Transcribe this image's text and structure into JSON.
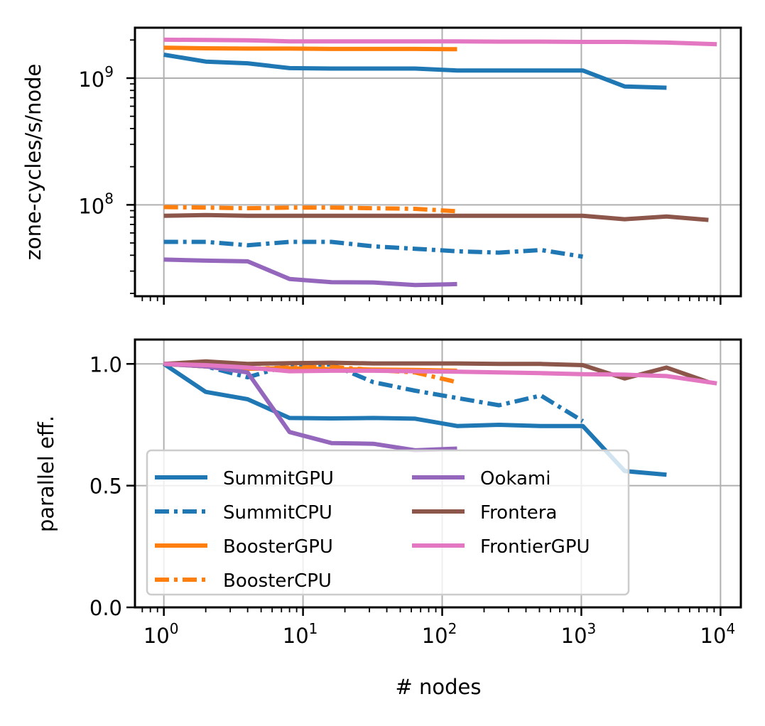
{
  "chart_data": [
    {
      "type": "line",
      "panel": "top",
      "title": "",
      "xlabel": "",
      "ylabel": "zone-cycles/s/node",
      "xscale": "log",
      "yscale": "log",
      "xlim": [
        0.62,
        14000
      ],
      "ylim": [
        19000000,
        2500000000
      ],
      "grid": true,
      "xticks": [
        1,
        10,
        100,
        1000,
        10000
      ],
      "xtick_labels": [
        "",
        "",
        "",
        "",
        ""
      ],
      "yticks": [
        100000000,
        1000000000
      ],
      "ytick_labels": [
        {
          "base": "10",
          "exp": "8"
        },
        {
          "base": "10",
          "exp": "9"
        }
      ],
      "series": [
        {
          "name": "SummitGPU",
          "color": "#1f77b4",
          "style": "solid",
          "x": [
            1,
            2,
            4,
            8,
            16,
            32,
            64,
            128,
            256,
            512,
            1024,
            2048,
            4096
          ],
          "y": [
            1530000000,
            1350000000,
            1310000000,
            1200000000,
            1190000000,
            1190000000,
            1190000000,
            1150000000,
            1150000000,
            1150000000,
            1150000000,
            860000000,
            840000000
          ]
        },
        {
          "name": "SummitCPU",
          "color": "#1f77b4",
          "style": "dashdot",
          "x": [
            1,
            2,
            4,
            8,
            16,
            32,
            64,
            128,
            256,
            512,
            1024
          ],
          "y": [
            51000000,
            51000000,
            48000000,
            51000000,
            51000000,
            47000000,
            45000000,
            43000000,
            42000000,
            44000000,
            39000000
          ]
        },
        {
          "name": "BoosterGPU",
          "color": "#ff7f0e",
          "style": "solid",
          "x": [
            1,
            2,
            4,
            8,
            16,
            32,
            64,
            128
          ],
          "y": [
            1740000000,
            1720000000,
            1710000000,
            1710000000,
            1700000000,
            1700000000,
            1700000000,
            1690000000
          ]
        },
        {
          "name": "BoosterCPU",
          "color": "#ff7f0e",
          "style": "dashdot",
          "x": [
            1,
            2,
            4,
            8,
            16,
            32,
            64,
            128
          ],
          "y": [
            96000000,
            95000000,
            94000000,
            95000000,
            95000000,
            94000000,
            93000000,
            89000000
          ]
        },
        {
          "name": "Ookami",
          "color": "#9467bd",
          "style": "solid",
          "x": [
            1,
            2,
            4,
            8,
            16,
            32,
            64,
            128
          ],
          "y": [
            37000000,
            36300000,
            35800000,
            26000000,
            24500000,
            24400000,
            23300000,
            23700000
          ]
        },
        {
          "name": "Frontera",
          "color": "#8c564b",
          "style": "solid",
          "x": [
            1,
            2,
            4,
            8,
            16,
            32,
            64,
            128,
            256,
            512,
            1024,
            2048,
            4096,
            8192
          ],
          "y": [
            82000000,
            83000000,
            82000000,
            82000000,
            82000000,
            82000000,
            82000000,
            82000000,
            82000000,
            82000000,
            82000000,
            77000000,
            81000000,
            76000000
          ]
        },
        {
          "name": "FrontierGPU",
          "color": "#e377c2",
          "style": "solid",
          "x": [
            1,
            2,
            4,
            8,
            16,
            32,
            64,
            128,
            256,
            512,
            1024,
            2048,
            4096,
            9408
          ],
          "y": [
            2010000000,
            2000000000,
            1990000000,
            1950000000,
            1950000000,
            1950000000,
            1950000000,
            1950000000,
            1940000000,
            1940000000,
            1930000000,
            1930000000,
            1910000000,
            1850000000
          ]
        }
      ]
    },
    {
      "type": "line",
      "panel": "bottom",
      "title": "",
      "xlabel": "# nodes",
      "ylabel": "parallel eff.",
      "xscale": "log",
      "yscale": "linear",
      "xlim": [
        0.62,
        14000
      ],
      "ylim": [
        0.0,
        1.1
      ],
      "grid": true,
      "xticks": [
        1,
        10,
        100,
        1000,
        10000
      ],
      "xtick_labels": [
        {
          "base": "10",
          "exp": "0"
        },
        {
          "base": "10",
          "exp": "1"
        },
        {
          "base": "10",
          "exp": "2"
        },
        {
          "base": "10",
          "exp": "3"
        },
        {
          "base": "10",
          "exp": "4"
        }
      ],
      "yticks": [
        0.0,
        0.5,
        1.0
      ],
      "ytick_labels": [
        "0.0",
        "0.5",
        "1.0"
      ],
      "legend": {
        "placement": "lower-left",
        "ncol": 2
      },
      "series": [
        {
          "name": "SummitGPU",
          "color": "#1f77b4",
          "style": "solid",
          "x": [
            1,
            2,
            4,
            8,
            16,
            32,
            64,
            128,
            256,
            512,
            1024,
            2048,
            4096
          ],
          "y": [
            1.0,
            0.885,
            0.855,
            0.778,
            0.776,
            0.778,
            0.775,
            0.745,
            0.75,
            0.745,
            0.745,
            0.56,
            0.545
          ]
        },
        {
          "name": "SummitCPU",
          "color": "#1f77b4",
          "style": "dashdot",
          "x": [
            1,
            2,
            4,
            8,
            16,
            32,
            64,
            128,
            256,
            512,
            1024
          ],
          "y": [
            1.0,
            0.99,
            0.945,
            0.995,
            0.998,
            0.925,
            0.89,
            0.86,
            0.83,
            0.87,
            0.765
          ]
        },
        {
          "name": "BoosterGPU",
          "color": "#ff7f0e",
          "style": "solid",
          "x": [
            1,
            2,
            4,
            8,
            16,
            32,
            64,
            128
          ],
          "y": [
            1.0,
            0.99,
            0.98,
            0.982,
            0.978,
            0.977,
            0.975,
            0.972
          ]
        },
        {
          "name": "BoosterCPU",
          "color": "#ff7f0e",
          "style": "dashdot",
          "x": [
            1,
            2,
            4,
            8,
            16,
            32,
            64,
            128
          ],
          "y": [
            1.0,
            0.99,
            0.98,
            0.985,
            0.988,
            0.975,
            0.965,
            0.925
          ]
        },
        {
          "name": "Ookami",
          "color": "#9467bd",
          "style": "solid",
          "x": [
            1,
            2,
            4,
            8,
            16,
            32,
            64,
            128
          ],
          "y": [
            1.0,
            0.99,
            0.965,
            0.72,
            0.675,
            0.672,
            0.645,
            0.652
          ]
        },
        {
          "name": "Frontera",
          "color": "#8c564b",
          "style": "solid",
          "x": [
            1,
            2,
            4,
            8,
            16,
            32,
            64,
            128,
            256,
            512,
            1024,
            2048,
            4096,
            8192
          ],
          "y": [
            1.0,
            1.01,
            1.0,
            1.003,
            1.005,
            1.002,
            1.002,
            1.002,
            1.0,
            1.0,
            0.995,
            0.94,
            0.985,
            0.925
          ]
        },
        {
          "name": "FrontierGPU",
          "color": "#e377c2",
          "style": "solid",
          "x": [
            1,
            2,
            4,
            8,
            16,
            32,
            64,
            128,
            256,
            512,
            1024,
            2048,
            4096,
            9408
          ],
          "y": [
            1.0,
            0.995,
            0.985,
            0.97,
            0.972,
            0.972,
            0.97,
            0.968,
            0.965,
            0.962,
            0.958,
            0.956,
            0.95,
            0.92
          ]
        }
      ]
    }
  ]
}
